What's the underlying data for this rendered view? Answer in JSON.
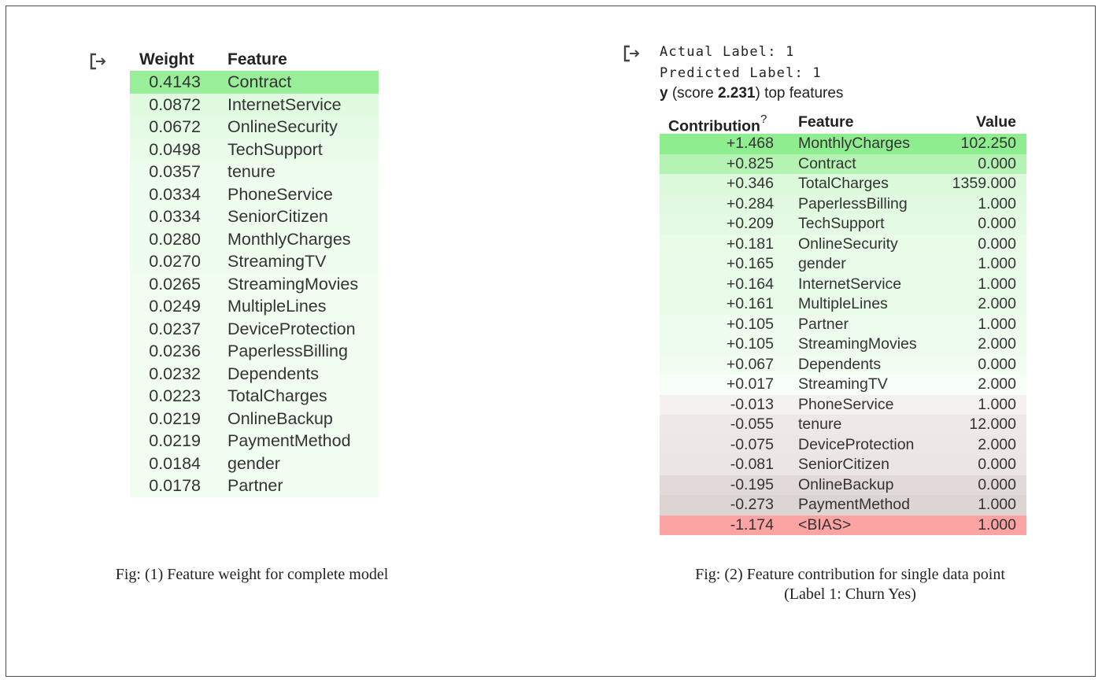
{
  "icons": {
    "output": "output-arrow-icon"
  },
  "left_table": {
    "headers": {
      "weight": "Weight",
      "feature": "Feature"
    },
    "rows": [
      {
        "weight": "0.4143",
        "feature": "Contract",
        "bg": "#99ee99"
      },
      {
        "weight": "0.0872",
        "feature": "InternetService",
        "bg": "#e1fbe1"
      },
      {
        "weight": "0.0672",
        "feature": "OnlineSecurity",
        "bg": "#e5fbe5"
      },
      {
        "weight": "0.0498",
        "feature": "TechSupport",
        "bg": "#e9fce9"
      },
      {
        "weight": "0.0357",
        "feature": "tenure",
        "bg": "#edfced"
      },
      {
        "weight": "0.0334",
        "feature": "PhoneService",
        "bg": "#eefdee"
      },
      {
        "weight": "0.0334",
        "feature": "SeniorCitizen",
        "bg": "#eefdee"
      },
      {
        "weight": "0.0280",
        "feature": "MonthlyCharges",
        "bg": "#effdef"
      },
      {
        "weight": "0.0270",
        "feature": "StreamingTV",
        "bg": "#effdef"
      },
      {
        "weight": "0.0265",
        "feature": "StreamingMovies",
        "bg": "#f0fdf0"
      },
      {
        "weight": "0.0249",
        "feature": "MultipleLines",
        "bg": "#f0fdf0"
      },
      {
        "weight": "0.0237",
        "feature": "DeviceProtection",
        "bg": "#f0fdf0"
      },
      {
        "weight": "0.0236",
        "feature": "PaperlessBilling",
        "bg": "#f0fdf0"
      },
      {
        "weight": "0.0232",
        "feature": "Dependents",
        "bg": "#f1fdf1"
      },
      {
        "weight": "0.0223",
        "feature": "TotalCharges",
        "bg": "#f1fdf1"
      },
      {
        "weight": "0.0219",
        "feature": "OnlineBackup",
        "bg": "#f1fdf1"
      },
      {
        "weight": "0.0219",
        "feature": "PaymentMethod",
        "bg": "#f1fdf1"
      },
      {
        "weight": "0.0184",
        "feature": "gender",
        "bg": "#f2fdf2"
      },
      {
        "weight": "0.0178",
        "feature": "Partner",
        "bg": "#f2fdf2"
      }
    ]
  },
  "right_text": {
    "actual": "Actual Label: 1",
    "predicted": "Predicted Label: 1",
    "score_prefix": "y",
    "score_mid": " (score ",
    "score_value": "2.231",
    "score_suffix": ") top features"
  },
  "right_table": {
    "headers": {
      "contribution": "Contribution",
      "sup": "?",
      "feature": "Feature",
      "value": "Value"
    },
    "rows": [
      {
        "contribution": "+1.468",
        "feature": "MonthlyCharges",
        "value": "102.250",
        "bg": "#8eed8e"
      },
      {
        "contribution": "+0.825",
        "feature": "Contract",
        "value": "0.000",
        "bg": "#b5f3b5"
      },
      {
        "contribution": "+0.346",
        "feature": "TotalCharges",
        "value": "1359.000",
        "bg": "#dcf9dc"
      },
      {
        "contribution": "+0.284",
        "feature": "PaperlessBilling",
        "value": "1.000",
        "bg": "#e0f9e0"
      },
      {
        "contribution": "+0.209",
        "feature": "TechSupport",
        "value": "0.000",
        "bg": "#e5fae5"
      },
      {
        "contribution": "+0.181",
        "feature": "OnlineSecurity",
        "value": "0.000",
        "bg": "#e7fbe7"
      },
      {
        "contribution": "+0.165",
        "feature": "gender",
        "value": "1.000",
        "bg": "#e8fbe8"
      },
      {
        "contribution": "+0.164",
        "feature": "InternetService",
        "value": "1.000",
        "bg": "#e8fbe8"
      },
      {
        "contribution": "+0.161",
        "feature": "MultipleLines",
        "value": "2.000",
        "bg": "#e8fbe8"
      },
      {
        "contribution": "+0.105",
        "feature": "Partner",
        "value": "1.000",
        "bg": "#edfced"
      },
      {
        "contribution": "+0.105",
        "feature": "StreamingMovies",
        "value": "2.000",
        "bg": "#edfced"
      },
      {
        "contribution": "+0.067",
        "feature": "Dependents",
        "value": "0.000",
        "bg": "#f1fdf1"
      },
      {
        "contribution": "+0.017",
        "feature": "StreamingTV",
        "value": "2.000",
        "bg": "#f8fef8"
      },
      {
        "contribution": "-0.013",
        "feature": "PhoneService",
        "value": "1.000",
        "bg": "#f6f1f1"
      },
      {
        "contribution": "-0.055",
        "feature": "tenure",
        "value": "12.000",
        "bg": "#efe8e8"
      },
      {
        "contribution": "-0.075",
        "feature": "DeviceProtection",
        "value": "2.000",
        "bg": "#ede6e6"
      },
      {
        "contribution": "-0.081",
        "feature": "SeniorCitizen",
        "value": "0.000",
        "bg": "#ece5e5"
      },
      {
        "contribution": "-0.195",
        "feature": "OnlineBackup",
        "value": "0.000",
        "bg": "#e2dada"
      },
      {
        "contribution": "-0.273",
        "feature": "PaymentMethod",
        "value": "1.000",
        "bg": "#ddd4d4"
      },
      {
        "contribution": "-1.174",
        "feature": "<BIAS>",
        "value": "1.000",
        "bg": "#fca3a3"
      }
    ]
  },
  "captions": {
    "left": "Fig: (1) Feature weight for complete model",
    "right_line1": "Fig: (2) Feature contribution for single data point",
    "right_line2": "(Label 1: Churn Yes)"
  }
}
